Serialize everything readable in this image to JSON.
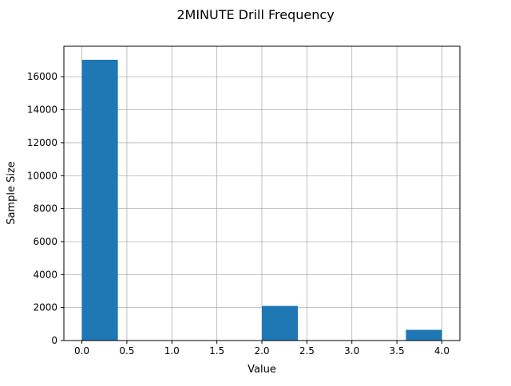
{
  "chart_data": {
    "type": "bar",
    "title": "2MINUTE Drill Frequency",
    "xlabel": "Value",
    "ylabel": "Sample Size",
    "xlim": [
      -0.2,
      4.2
    ],
    "ylim": [
      0,
      17850
    ],
    "xticks": [
      0.0,
      0.5,
      1.0,
      1.5,
      2.0,
      2.5,
      3.0,
      3.5,
      4.0
    ],
    "xtick_labels": [
      "0.0",
      "0.5",
      "1.0",
      "1.5",
      "2.0",
      "2.5",
      "3.0",
      "3.5",
      "4.0"
    ],
    "yticks": [
      0,
      2000,
      4000,
      6000,
      8000,
      10000,
      12000,
      14000,
      16000
    ],
    "ytick_labels": [
      "0",
      "2000",
      "4000",
      "6000",
      "8000",
      "10000",
      "12000",
      "14000",
      "16000"
    ],
    "grid": true,
    "bar_color": "#1f77b4",
    "grid_color": "#b0b0b0",
    "bins": [
      {
        "x0": 0.0,
        "x1": 0.4,
        "value": 17030
      },
      {
        "x0": 0.4,
        "x1": 0.8,
        "value": 0
      },
      {
        "x0": 0.8,
        "x1": 1.2,
        "value": 0
      },
      {
        "x0": 1.2,
        "x1": 1.6,
        "value": 0
      },
      {
        "x0": 1.6,
        "x1": 2.0,
        "value": 0
      },
      {
        "x0": 2.0,
        "x1": 2.4,
        "value": 2100
      },
      {
        "x0": 2.4,
        "x1": 2.8,
        "value": 0
      },
      {
        "x0": 2.8,
        "x1": 3.2,
        "value": 0
      },
      {
        "x0": 3.2,
        "x1": 3.6,
        "value": 0
      },
      {
        "x0": 3.6,
        "x1": 4.0,
        "value": 650
      }
    ]
  }
}
